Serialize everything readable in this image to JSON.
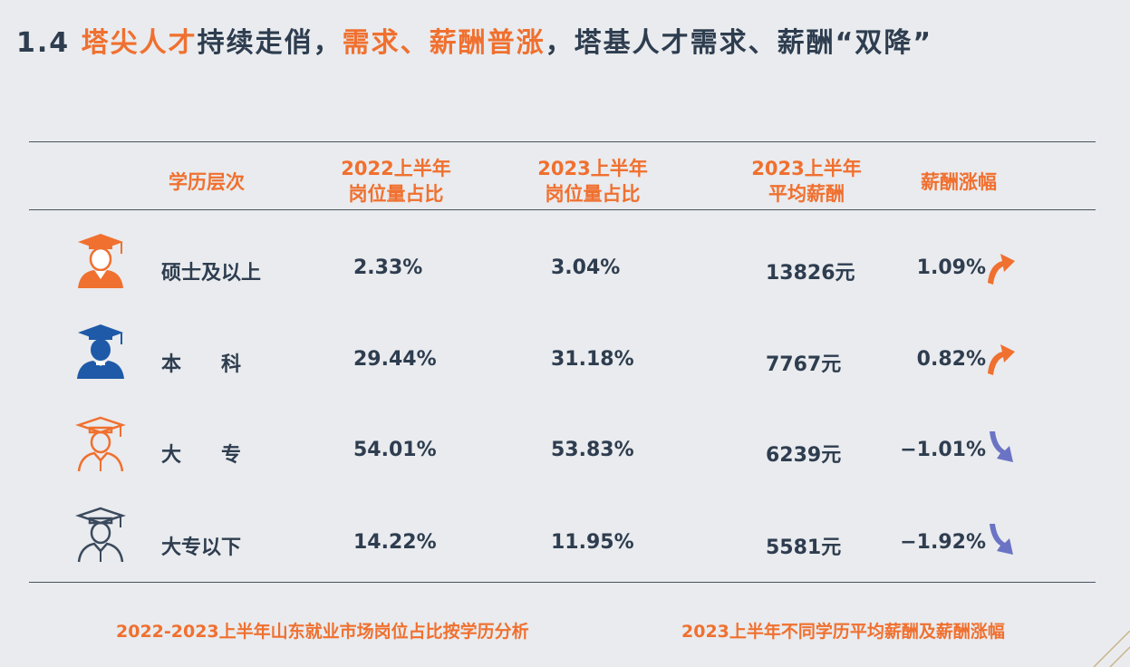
{
  "title": {
    "num": "1.4",
    "p1": "塔尖人才",
    "p2": "持续走俏，",
    "p3": "需求、薪酬普涨",
    "p4": "，塔基人才需求、薪酬“双降”"
  },
  "table": {
    "headers": {
      "level": "学历层次",
      "c2022_l1": "2022上半年",
      "c2022_l2": "岗位量占比",
      "c2023_l1": "2023上半年",
      "c2023_l2": "岗位量占比",
      "sal_l1": "2023上半年",
      "sal_l2": "平均薪酬",
      "chg": "薪酬涨幅"
    },
    "rows": [
      {
        "level": "硕士及以上",
        "share2022": "2.33%",
        "share2023": "3.04%",
        "salary": "13826元",
        "change": "1.09%",
        "direction": "up",
        "icon": "graduate-orange-filled-icon"
      },
      {
        "level": "本　　科",
        "share2022": "29.44%",
        "share2023": "31.18%",
        "salary": "7767元",
        "change": "0.82%",
        "direction": "up",
        "icon": "graduate-blue-filled-icon"
      },
      {
        "level": "大　　专",
        "share2022": "54.01%",
        "share2023": "53.83%",
        "salary": "6239元",
        "change": "−1.01%",
        "direction": "down",
        "icon": "graduate-orange-outline-icon"
      },
      {
        "level": "大专以下",
        "share2022": "14.22%",
        "share2023": "11.95%",
        "salary": "5581元",
        "change": "−1.92%",
        "direction": "down",
        "icon": "graduate-navy-outline-icon"
      }
    ]
  },
  "footer": {
    "left": "2022-2023上半年山东就业市场岗位占比按学历分析",
    "right": "2023上半年不同学历平均薪酬及薪酬涨幅"
  },
  "colors": {
    "accent": "#f0702f",
    "text": "#2e3d4f",
    "blue": "#1e5aa8",
    "arrow_down": "#6b74c4"
  }
}
